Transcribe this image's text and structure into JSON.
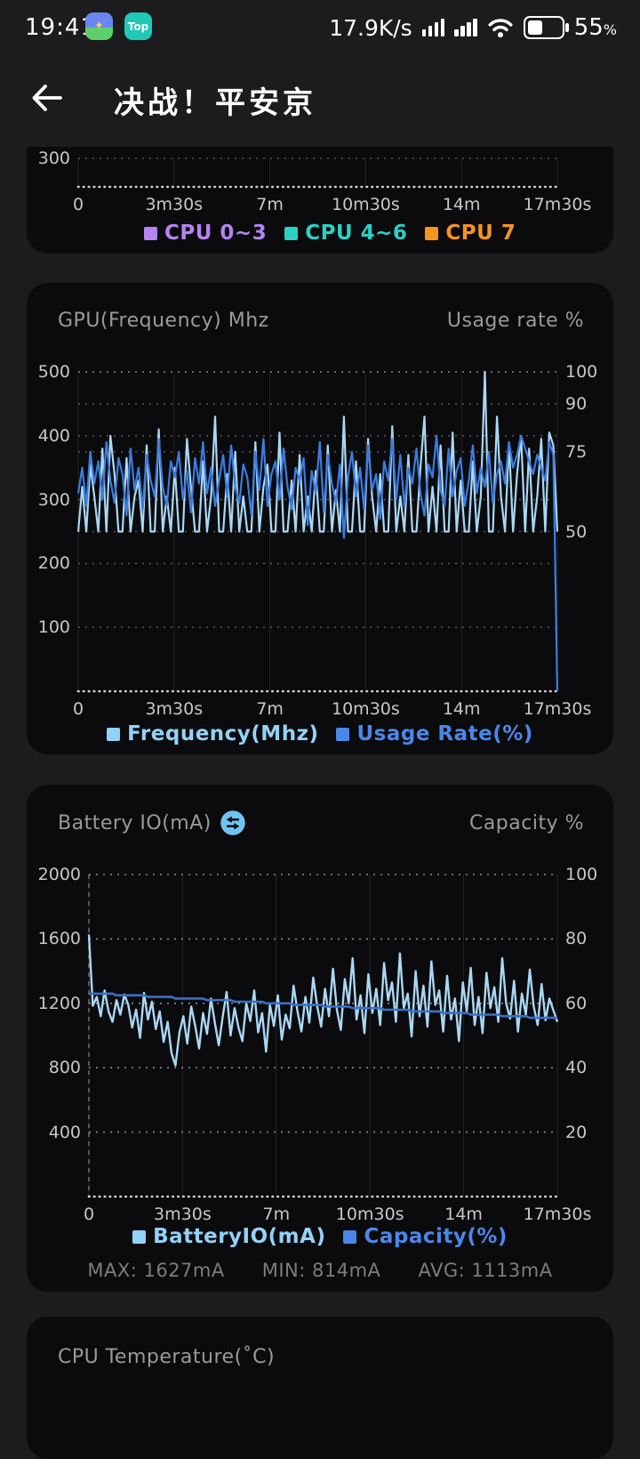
{
  "status_bar": {
    "time": "19:41",
    "app_icon": "game-app-icon",
    "app_icon_glyph": "✦",
    "top_badge_label": "Top",
    "network_speed": "17.9K/s",
    "icons": [
      "cellular-signal-icon",
      "cellular-signal-icon",
      "wifi-icon",
      "battery-icon"
    ],
    "battery_percent": "55",
    "percent_sign": "%"
  },
  "header": {
    "title": "决战！平安京",
    "back_icon": "back-arrow-icon"
  },
  "colors": {
    "page_bg": "#1c1c1e",
    "card_bg": "#0b0b0d",
    "pale_blue": "#a9d8f5",
    "royal_blue": "#3b7cdf",
    "capacity_blue": "#3a70c9",
    "purple": "#b583f2",
    "teal": "#2bd1c4",
    "orange": "#f6941f",
    "swap_icon_blue": "#6fc3f2"
  },
  "chart_data": [
    {
      "type": "line",
      "name": "cpu-usage-partial",
      "x_ticks": [
        "0",
        "3m30s",
        "7m",
        "10m30s",
        "14m",
        "17m30s"
      ],
      "left_axis": {
        "ticks": [
          300
        ],
        "range": [
          268,
          300
        ]
      },
      "series": [],
      "legend": [
        {
          "label": "CPU 0~3",
          "color": "#b583f2"
        },
        {
          "label": "CPU 4~6",
          "color": "#2bd1c4"
        },
        {
          "label": "CPU 7",
          "color": "#f6941f"
        }
      ]
    },
    {
      "type": "line",
      "name": "gpu-frequency-usage",
      "title_left": "GPU(Frequency) Mhz",
      "title_right": "Usage rate %",
      "x_ticks": [
        "0",
        "3m30s",
        "7m",
        "10m30s",
        "14m",
        "17m30s"
      ],
      "left_axis": {
        "ticks": [
          500,
          400,
          300,
          200,
          100
        ],
        "range": [
          0,
          500
        ]
      },
      "right_axis": {
        "ticks": [
          100,
          90,
          75,
          50
        ],
        "range": [
          0,
          100
        ]
      },
      "series": [
        {
          "name": "Frequency(Mhz)",
          "axis": "left",
          "color": "#a9d8f5",
          "width": 2.2,
          "values": [
            250,
            320,
            250,
            355,
            305,
            250,
            380,
            250,
            400,
            340,
            250,
            250,
            365,
            250,
            305,
            330,
            250,
            385,
            250,
            250,
            410,
            250,
            305,
            250,
            350,
            250,
            250,
            395,
            320,
            250,
            250,
            360,
            250,
            305,
            430,
            250,
            250,
            340,
            250,
            375,
            250,
            305,
            250,
            250,
            390,
            250,
            320,
            355,
            250,
            250,
            405,
            250,
            250,
            330,
            250,
            370,
            250,
            305,
            250,
            345,
            250,
            250,
            385,
            250,
            315,
            250,
            430,
            250,
            250,
            360,
            250,
            250,
            395,
            305,
            250,
            340,
            250,
            250,
            415,
            250,
            305,
            250,
            370,
            250,
            250,
            350,
            430,
            250,
            320,
            250,
            385,
            250,
            250,
            405,
            250,
            330,
            250,
            250,
            360,
            250,
            305,
            500,
            250,
            250,
            430,
            305,
            250,
            390,
            250,
            340,
            400,
            250,
            380,
            250,
            305,
            395,
            250,
            405,
            385,
            250
          ]
        },
        {
          "name": "Usage Rate(%)",
          "axis": "right",
          "color": "#3b7cdf",
          "width": 2.2,
          "values": [
            62,
            70,
            58,
            75,
            65,
            72,
            60,
            78,
            66,
            59,
            73,
            68,
            55,
            76,
            63,
            70,
            57,
            74,
            66,
            61,
            79,
            64,
            58,
            72,
            67,
            75,
            60,
            69,
            56,
            73,
            65,
            78,
            62,
            70,
            58,
            66,
            74,
            61,
            77,
            64,
            59,
            71,
            67,
            55,
            75,
            63,
            79,
            58,
            68,
            72,
            60,
            76,
            64,
            57,
            70,
            66,
            73,
            52,
            69,
            62,
            78,
            56,
            74,
            65,
            59,
            71,
            48,
            67,
            75,
            61,
            70,
            57,
            77,
            63,
            68,
            54,
            72,
            66,
            79,
            60,
            74,
            58,
            70,
            65,
            76,
            62,
            55,
            71,
            67,
            80,
            63,
            58,
            76,
            61,
            69,
            73,
            58,
            66,
            77,
            62,
            70,
            64,
            75,
            59,
            68,
            72,
            65,
            78,
            70,
            74,
            80,
            76,
            72,
            68,
            74,
            70,
            66,
            78,
            74,
            0
          ]
        }
      ],
      "legend": [
        {
          "label": "Frequency(Mhz)",
          "color": "#93d2f7"
        },
        {
          "label": "Usage Rate(%)",
          "color": "#4b87ea"
        }
      ]
    },
    {
      "type": "line",
      "name": "battery-io-capacity",
      "title_left": "Battery IO(mA)",
      "title_icon": "swap-icon",
      "title_right": "Capacity %",
      "x_ticks": [
        "0",
        "3m30s",
        "7m",
        "10m30s",
        "14m",
        "17m30s"
      ],
      "left_axis": {
        "ticks": [
          2000,
          1600,
          1200,
          800,
          400
        ],
        "range": [
          0,
          2000
        ]
      },
      "right_axis": {
        "ticks": [
          100,
          80,
          60,
          40,
          20
        ],
        "range": [
          0,
          100
        ]
      },
      "axis_line_left": true,
      "series": [
        {
          "name": "BatteryIO(mA)",
          "axis": "left",
          "color": "#a9d8f5",
          "width": 2.4,
          "values": [
            1627,
            1185,
            1240,
            1120,
            1280,
            1150,
            1085,
            1220,
            1130,
            1255,
            1190,
            1050,
            1160,
            985,
            1265,
            1100,
            1210,
            1040,
            1150,
            960,
            1085,
            890,
            814,
            1020,
            1120,
            950,
            1180,
            1060,
            920,
            1140,
            1010,
            1230,
            1080,
            940,
            1120,
            1270,
            1000,
            1170,
            1050,
            965,
            1200,
            1090,
            1280,
            1020,
            1140,
            900,
            1190,
            1060,
            1250,
            975,
            1130,
            1045,
            1310,
            1150,
            1025,
            1240,
            1080,
            1360,
            1180,
            1055,
            1290,
            1120,
            1415,
            1160,
            1035,
            1350,
            1200,
            1480,
            1100,
            1250,
            1015,
            1380,
            1140,
            1290,
            1065,
            1450,
            1220,
            1330,
            1085,
            1510,
            1170,
            1260,
            995,
            1400,
            1120,
            1310,
            1055,
            1460,
            1190,
            1280,
            1025,
            1370,
            1100,
            1230,
            965,
            1330,
            1150,
            1420,
            1065,
            1240,
            1015,
            1390,
            1170,
            1300,
            1085,
            1480,
            1200,
            1105,
            1340,
            1025,
            1260,
            1130,
            1410,
            1180,
            1065,
            1320,
            1095,
            1230,
            1155,
            1085
          ]
        },
        {
          "name": "Capacity(%)",
          "axis": "right",
          "color": "#3a70c9",
          "width": 2.6,
          "values": [
            63,
            63,
            63,
            63,
            63,
            63,
            63,
            62.5,
            62.5,
            62.5,
            62.5,
            62.5,
            62.5,
            62.5,
            62.5,
            62,
            62,
            62,
            62,
            62,
            62,
            62,
            61.5,
            61.5,
            61.5,
            61.5,
            61.5,
            61.5,
            61.5,
            61.5,
            61,
            61,
            61,
            61,
            61,
            61,
            61,
            60.5,
            60.5,
            60.5,
            60.5,
            60.5,
            60.5,
            60.5,
            60.5,
            60,
            60,
            60,
            60,
            60,
            60,
            60,
            59.5,
            59.5,
            59.5,
            59.5,
            59.5,
            59.5,
            59.5,
            59.5,
            59,
            59,
            59,
            59,
            59,
            59,
            59,
            58.5,
            58.5,
            58.5,
            58.5,
            58.5,
            58.5,
            58.5,
            58.5,
            58,
            58,
            58,
            58,
            58,
            58,
            58,
            57.5,
            57.5,
            57.5,
            57.5,
            57.5,
            57.5,
            57.5,
            57.5,
            57,
            57,
            57,
            57,
            57,
            57,
            57,
            56.5,
            56.5,
            56.5,
            56.5,
            56.5,
            56.5,
            56.5,
            56.5,
            56,
            56,
            56,
            56,
            56,
            56,
            56,
            55.5,
            55.5,
            55.5,
            55.5,
            55.5,
            55.5,
            55.5,
            55.5
          ]
        }
      ],
      "legend": [
        {
          "label": "BatteryIO(mA)",
          "color": "#93d2f7"
        },
        {
          "label": "Capacity(%)",
          "color": "#4b87ea"
        }
      ],
      "stats": {
        "max": "MAX: 1627mA",
        "min": "MIN: 814mA",
        "avg": "AVG: 1113mA"
      }
    },
    {
      "type": "line",
      "name": "cpu-temperature",
      "title_left": "CPU Temperature(˚C)"
    }
  ]
}
